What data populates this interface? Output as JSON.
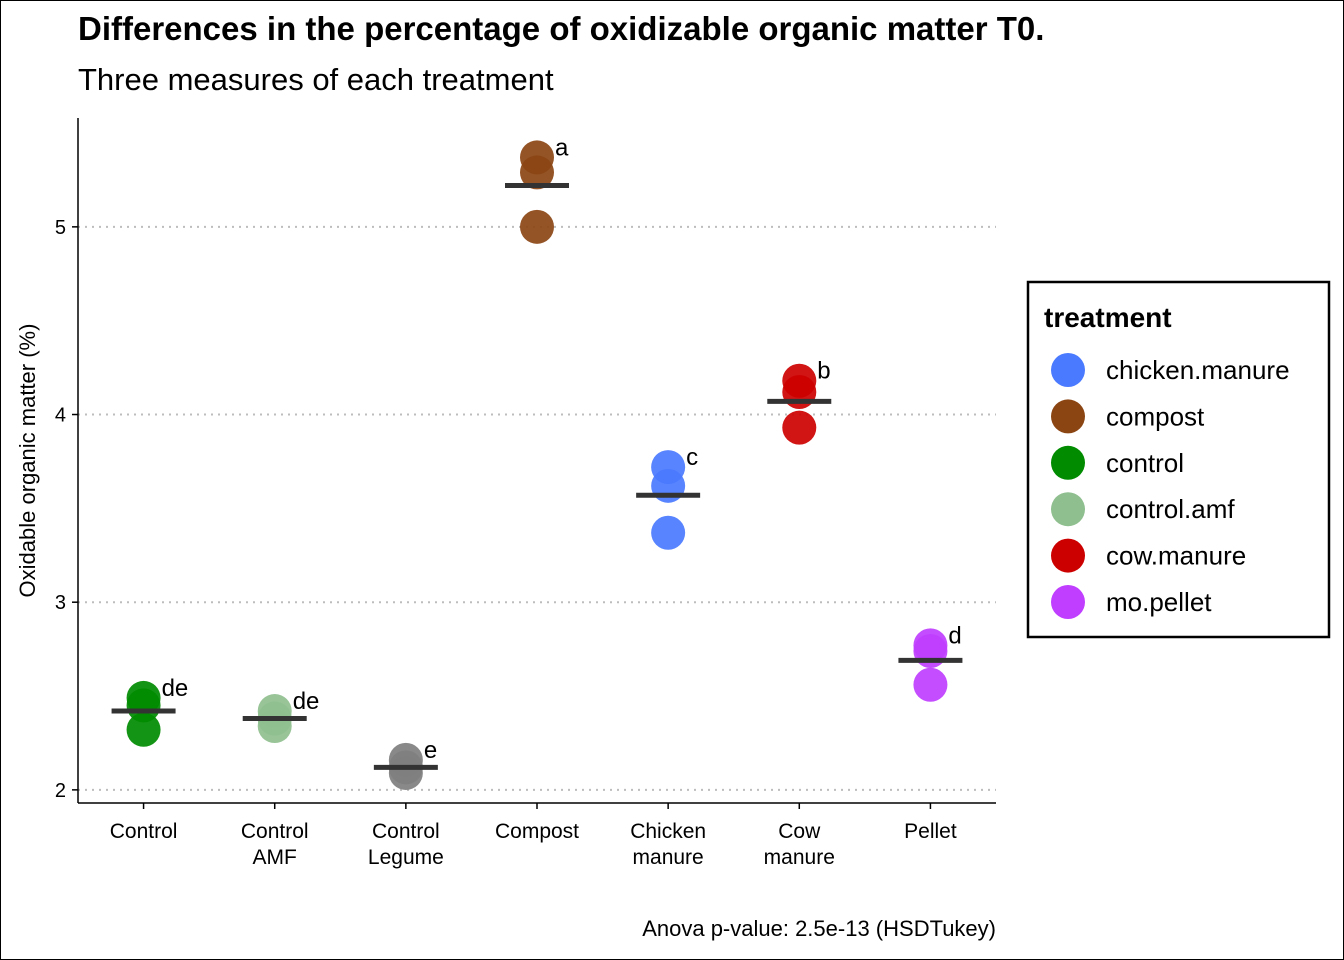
{
  "chart_data": {
    "type": "scatter",
    "title": "Differences in the percentage of oxidizable organic matter T0.",
    "subtitle": "Three measures of each treatment",
    "caption": "Anova p-value: 2.5e-13 (HSDTukey)",
    "xlabel": "",
    "ylabel": "Oxidable organic matter (%)",
    "ylim": [
      1.93,
      5.58
    ],
    "yticks": [
      2,
      3,
      4,
      5
    ],
    "grid": "horizontal-dotted",
    "legend_position": "right",
    "legend_title": "treatment",
    "categories": [
      "Control\nAMF",
      "Control\nLegume",
      "Compost",
      "Chicken\nmanure",
      "Cow\nmanure",
      "Pellet"
    ],
    "categories_full": [
      "Control",
      "Control\nAMF",
      "Control\nLegume",
      "Compost",
      "Chicken\nmanure",
      "Cow\nmanure",
      "Pellet"
    ],
    "groups": [
      {
        "category": "Control",
        "treatment": "control",
        "values": [
          2.32,
          2.45,
          2.49
        ],
        "mean": 2.42,
        "letter": "de"
      },
      {
        "category": "Control\nAMF",
        "treatment": "control.amf",
        "values": [
          2.34,
          2.38,
          2.42
        ],
        "mean": 2.38,
        "letter": "de"
      },
      {
        "category": "Control\nLegume",
        "treatment": "control.legume",
        "values": [
          2.09,
          2.12,
          2.16
        ],
        "mean": 2.12,
        "letter": "e"
      },
      {
        "category": "Compost",
        "treatment": "compost",
        "values": [
          5.0,
          5.29,
          5.37
        ],
        "mean": 5.22,
        "letter": "a"
      },
      {
        "category": "Chicken\nmanure",
        "treatment": "chicken.manure",
        "values": [
          3.37,
          3.62,
          3.72
        ],
        "mean": 3.57,
        "letter": "c"
      },
      {
        "category": "Cow\nmanure",
        "treatment": "cow.manure",
        "values": [
          3.93,
          4.12,
          4.18
        ],
        "mean": 4.07,
        "letter": "b"
      },
      {
        "category": "Pellet",
        "treatment": "mo.pellet",
        "values": [
          2.56,
          2.74,
          2.77
        ],
        "mean": 2.69,
        "letter": "d"
      }
    ],
    "legend": [
      {
        "name": "chicken.manure",
        "color": "#4a7aff"
      },
      {
        "name": "compost",
        "color": "#8b4513"
      },
      {
        "name": "control",
        "color": "#008b00"
      },
      {
        "name": "control.amf",
        "color": "#8fbf8f"
      },
      {
        "name": "cow.manure",
        "color": "#cd0000"
      },
      {
        "name": "mo.pellet",
        "color": "#bf3eff"
      }
    ],
    "colors": {
      "control": "#008b00",
      "control.amf": "#8fbf8f",
      "control.legume": "#7f7f7f",
      "compost": "#8b4513",
      "chicken.manure": "#4a7aff",
      "cow.manure": "#cd0000",
      "mo.pellet": "#bf3eff",
      "mean_bar": "#333333"
    }
  }
}
